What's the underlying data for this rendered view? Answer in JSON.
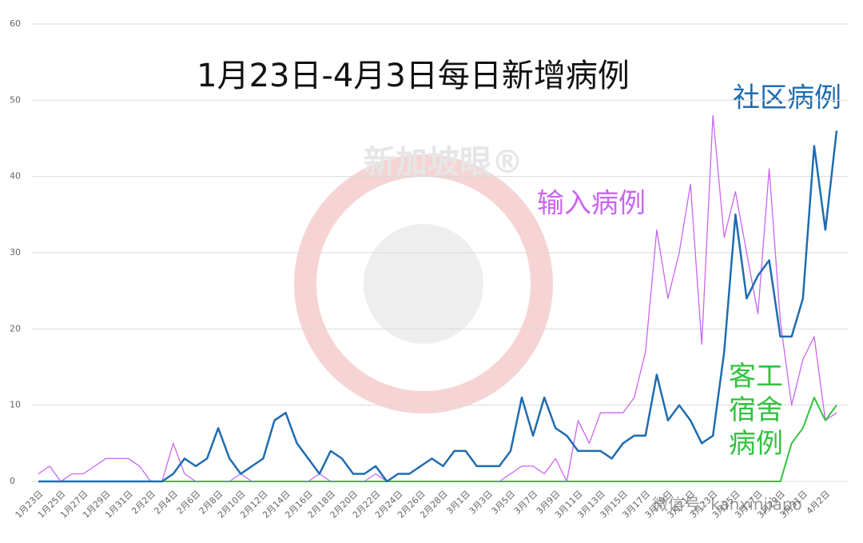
{
  "chart_data": {
    "type": "line",
    "title": "1月23日-4月3日每日新增病例",
    "watermark": "新加坡眼®",
    "footer": "微信号: kanxinjiapo",
    "categories": [
      "1月23日",
      null,
      "1月25日",
      null,
      "1月27日",
      null,
      "1月29日",
      null,
      "1月31日",
      null,
      "2月2日",
      null,
      "2月4日",
      null,
      "2月6日",
      null,
      "2月8日",
      null,
      "2月10日",
      null,
      "2月12日",
      null,
      "2月14日",
      null,
      "2月16日",
      null,
      "2月18日",
      null,
      "2月20日",
      null,
      "2月22日",
      null,
      "2月24日",
      null,
      "2月26日",
      null,
      "2月28日",
      null,
      "3月1日",
      null,
      "3月3日",
      null,
      "3月5日",
      null,
      "3月7日",
      null,
      "3月9日",
      null,
      "3月11日",
      null,
      "3月13日",
      null,
      "3月15日",
      null,
      "3月17日",
      null,
      "3月19日",
      null,
      "3月21日",
      null,
      "3月23日",
      null,
      "3月25日",
      null,
      "3月27日",
      null,
      "3月29日",
      null,
      "3月31日",
      null,
      "4月2日",
      null
    ],
    "series": [
      {
        "name": "输入病例",
        "color": "#c966f0",
        "width": 1.3,
        "values": [
          1,
          2,
          0,
          1,
          1,
          2,
          3,
          3,
          3,
          2,
          0,
          0,
          5,
          1,
          0,
          0,
          0,
          0,
          1,
          0,
          0,
          0,
          0,
          0,
          0,
          1,
          0,
          0,
          0,
          0,
          1,
          0,
          0,
          0,
          0,
          0,
          0,
          0,
          0,
          0,
          0,
          0,
          1,
          2,
          2,
          1,
          3,
          0,
          8,
          5,
          9,
          9,
          9,
          11,
          17,
          33,
          24,
          30,
          39,
          18,
          48,
          32,
          38,
          30,
          22,
          41,
          21,
          10,
          16,
          19,
          8,
          9
        ]
      },
      {
        "name": "客工宿舍病例",
        "color": "#33c23f",
        "width": 2,
        "values": [
          0,
          0,
          0,
          0,
          0,
          0,
          0,
          0,
          0,
          0,
          0,
          0,
          0,
          0,
          0,
          0,
          0,
          0,
          0,
          0,
          0,
          0,
          0,
          0,
          0,
          0,
          0,
          0,
          0,
          0,
          0,
          0,
          0,
          0,
          0,
          0,
          0,
          0,
          0,
          0,
          0,
          0,
          0,
          0,
          0,
          0,
          0,
          0,
          0,
          0,
          0,
          0,
          0,
          0,
          0,
          0,
          0,
          0,
          0,
          0,
          0,
          0,
          0,
          0,
          0,
          0,
          0,
          5,
          7,
          11,
          8,
          10
        ]
      },
      {
        "name": "社区病例",
        "color": "#1f6cb0",
        "width": 2.5,
        "values": [
          0,
          0,
          0,
          0,
          0,
          0,
          0,
          0,
          0,
          0,
          0,
          0,
          1,
          3,
          2,
          3,
          7,
          3,
          1,
          2,
          3,
          8,
          9,
          5,
          3,
          1,
          4,
          3,
          1,
          1,
          2,
          0,
          1,
          1,
          2,
          3,
          2,
          4,
          4,
          2,
          2,
          2,
          4,
          11,
          6,
          11,
          7,
          6,
          4,
          4,
          4,
          3,
          5,
          6,
          6,
          14,
          8,
          10,
          8,
          5,
          6,
          17,
          35,
          24,
          27,
          29,
          19,
          19,
          24,
          44,
          33,
          46
        ]
      }
    ],
    "ylim": [
      0,
      60
    ],
    "yticks": [
      0,
      10,
      20,
      30,
      40,
      50,
      60
    ],
    "grid": true
  }
}
